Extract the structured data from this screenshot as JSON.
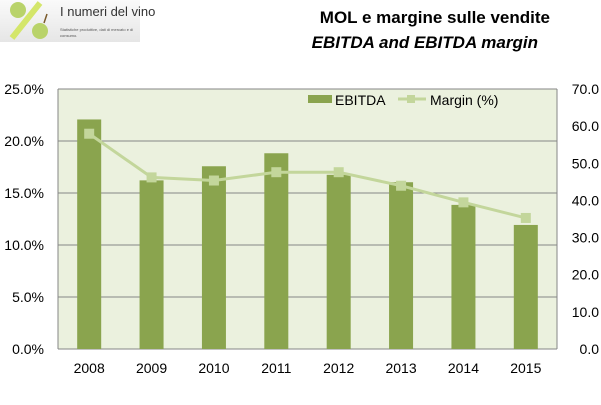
{
  "logo": {
    "brand": "I numeri del vino",
    "tagline": "Statistiche produttive, dati di mercato e di consumo."
  },
  "title": "MOL e margine sulle vendite",
  "subtitle": "EBITDA and EBITDA margin",
  "colors": {
    "bar": "#8AA44E",
    "line": "#C3D69B",
    "plot_bg": "#EBF1DE",
    "grid": "#868686"
  },
  "chart_data": {
    "type": "bar+line",
    "title": "MOL e margine sulle vendite / EBITDA and EBITDA margin",
    "categories": [
      "2008",
      "2009",
      "2010",
      "2011",
      "2012",
      "2013",
      "2014",
      "2015"
    ],
    "series": [
      {
        "name": "EBITDA",
        "type": "bar",
        "axis": "right",
        "values": [
          61.8,
          45.4,
          49.2,
          52.7,
          46.9,
          44.9,
          38.8,
          33.4
        ]
      },
      {
        "name": "Margin (%)",
        "type": "line",
        "axis": "left",
        "values": [
          20.7,
          16.5,
          16.2,
          17.0,
          17.0,
          15.7,
          14.1,
          12.6
        ]
      }
    ],
    "left_axis": {
      "range": [
        0,
        25
      ],
      "ticks": [
        "0.0%",
        "5.0%",
        "10.0%",
        "15.0%",
        "20.0%",
        "25.0%"
      ]
    },
    "right_axis": {
      "range": [
        0,
        70
      ],
      "ticks": [
        "0.0",
        "10.0",
        "20.0",
        "30.0",
        "40.0",
        "50.0",
        "60.0",
        "70.0"
      ]
    },
    "grid": true,
    "legend": {
      "placement": "top-right",
      "entries": [
        "EBITDA",
        "Margin (%)"
      ]
    }
  }
}
